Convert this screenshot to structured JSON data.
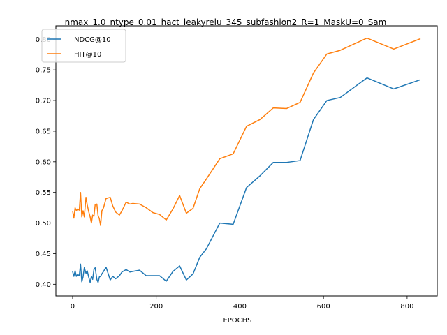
{
  "chart_data": {
    "type": "line",
    "title": "_nmax_1.0_ntype_0.01_hact_leakyrelu_345_subfashion2_R=1_MaskU=0_Sam",
    "xlabel": "EPOCHS",
    "ylabel": "",
    "xlim": [
      -40,
      872
    ],
    "ylim": [
      0.381,
      0.822
    ],
    "xticks": [
      0,
      200,
      400,
      600,
      800
    ],
    "yticks": [
      0.4,
      0.45,
      0.5,
      0.55,
      0.6,
      0.65,
      0.7,
      0.75,
      0.8
    ],
    "xtick_labels": [
      "0",
      "200",
      "400",
      "600",
      "800"
    ],
    "ytick_labels": [
      "0.40",
      "0.45",
      "0.50",
      "0.55",
      "0.60",
      "0.65",
      "0.70",
      "0.75",
      "0.80"
    ],
    "legend_position": "upper-left",
    "grid": false,
    "series": [
      {
        "name": "NDCG@10",
        "color": "#1f77b4",
        "x": [
          0,
          3,
          6,
          9,
          12,
          16,
          19,
          22,
          25,
          28,
          32,
          35,
          38,
          42,
          45,
          48,
          51,
          54,
          58,
          61,
          64,
          67,
          70,
          74,
          80,
          90,
          96,
          103,
          112,
          118,
          128,
          137,
          144,
          160,
          176,
          192,
          208,
          224,
          240,
          256,
          272,
          288,
          304,
          320,
          352,
          384,
          416,
          448,
          480,
          512,
          544,
          576,
          608,
          640,
          704,
          768,
          832
        ],
        "y": [
          0.421,
          0.413,
          0.422,
          0.413,
          0.416,
          0.414,
          0.433,
          0.404,
          0.412,
          0.427,
          0.418,
          0.422,
          0.413,
          0.403,
          0.413,
          0.408,
          0.424,
          0.427,
          0.408,
          0.403,
          0.412,
          0.413,
          0.417,
          0.421,
          0.428,
          0.407,
          0.413,
          0.409,
          0.414,
          0.42,
          0.424,
          0.42,
          0.421,
          0.423,
          0.414,
          0.414,
          0.414,
          0.405,
          0.421,
          0.43,
          0.407,
          0.417,
          0.444,
          0.458,
          0.5,
          0.498,
          0.558,
          0.577,
          0.599,
          0.599,
          0.602,
          0.669,
          0.7,
          0.705,
          0.737,
          0.719,
          0.734
        ]
      },
      {
        "name": "HIT@10",
        "color": "#ff7f0e",
        "x": [
          0,
          3,
          6,
          9,
          12,
          16,
          19,
          22,
          25,
          28,
          32,
          35,
          38,
          42,
          45,
          48,
          51,
          54,
          58,
          61,
          64,
          67,
          70,
          74,
          80,
          90,
          96,
          103,
          112,
          118,
          128,
          137,
          144,
          160,
          176,
          192,
          208,
          224,
          240,
          256,
          272,
          288,
          304,
          320,
          352,
          384,
          416,
          448,
          480,
          512,
          544,
          576,
          608,
          640,
          704,
          768,
          832
        ],
        "y": [
          0.52,
          0.508,
          0.525,
          0.52,
          0.523,
          0.521,
          0.55,
          0.51,
          0.52,
          0.51,
          0.542,
          0.53,
          0.52,
          0.51,
          0.5,
          0.513,
          0.511,
          0.53,
          0.531,
          0.512,
          0.507,
          0.496,
          0.52,
          0.525,
          0.54,
          0.542,
          0.528,
          0.518,
          0.513,
          0.52,
          0.534,
          0.531,
          0.532,
          0.531,
          0.525,
          0.517,
          0.514,
          0.505,
          0.523,
          0.545,
          0.516,
          0.524,
          0.556,
          0.572,
          0.605,
          0.613,
          0.658,
          0.669,
          0.688,
          0.687,
          0.697,
          0.745,
          0.776,
          0.782,
          0.802,
          0.784,
          0.801
        ]
      }
    ]
  }
}
